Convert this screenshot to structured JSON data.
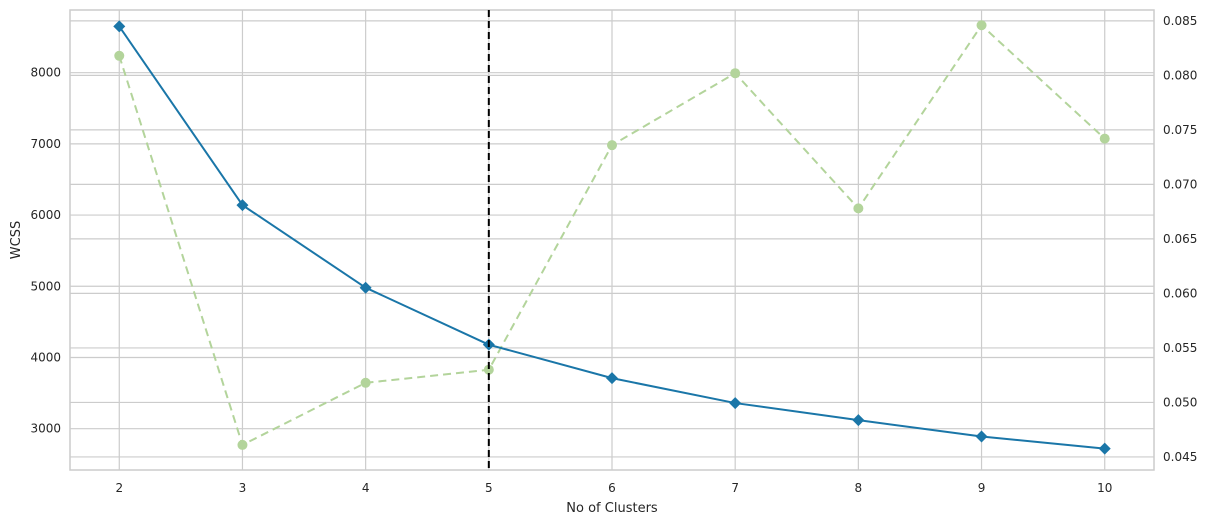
{
  "chart_data": {
    "type": "line",
    "title": "",
    "xlabel": "No of Clusters",
    "ylabel": "WCSS",
    "y2label": "",
    "x": [
      2,
      3,
      4,
      5,
      6,
      7,
      8,
      9,
      10
    ],
    "x_tick_labels": [
      "2",
      "3",
      "4",
      "5",
      "6",
      "7",
      "8",
      "9",
      "10"
    ],
    "xlim": [
      1.6,
      10.4
    ],
    "ylim": [
      2420,
      8880
    ],
    "y_ticks": [
      3000,
      4000,
      5000,
      6000,
      7000,
      8000
    ],
    "y_tick_labels": [
      "3000",
      "4000",
      "5000",
      "6000",
      "7000",
      "8000"
    ],
    "y2lim": [
      0.0438,
      0.086
    ],
    "y2_ticks": [
      0.045,
      0.05,
      0.055,
      0.06,
      0.065,
      0.07,
      0.075,
      0.08,
      0.085
    ],
    "y2_tick_labels": [
      "0.045",
      "0.050",
      "0.055",
      "0.060",
      "0.065",
      "0.070",
      "0.075",
      "0.080",
      "0.085"
    ],
    "series": [
      {
        "axis": "left",
        "style": "solid",
        "marker": "diamond",
        "color": "#1a76a8",
        "values": [
          8650,
          6140,
          4980,
          4180,
          3710,
          3360,
          3120,
          2890,
          2720
        ]
      },
      {
        "axis": "right",
        "style": "dashed",
        "marker": "circle",
        "color": "#b3d49b",
        "values": [
          0.0818,
          0.0461,
          0.0518,
          0.053,
          0.0736,
          0.0802,
          0.0678,
          0.0846,
          0.0742
        ]
      }
    ],
    "vline": {
      "x": 5,
      "color": "#000000",
      "style": "dashed"
    },
    "grid": true,
    "grid_color": "#cccccc",
    "legend": "none"
  }
}
